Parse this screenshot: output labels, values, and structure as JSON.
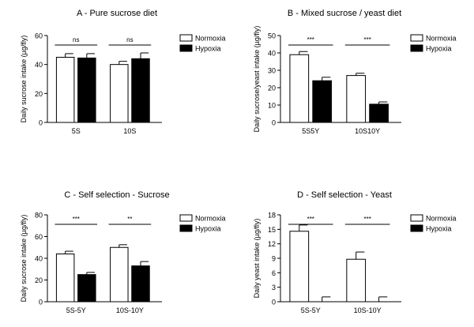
{
  "chart_data": [
    {
      "type": "bar",
      "title": "A - Pure sucrose diet",
      "xlabel": "",
      "ylabel": "Daily sucrose intake (µg/fly)",
      "ylim": [
        0,
        60
      ],
      "yticks": [
        "0",
        "20",
        "40",
        "60"
      ],
      "categories": [
        "5S",
        "10S"
      ],
      "series": [
        {
          "name": "Normoxia",
          "values": [
            45,
            40
          ],
          "errors": [
            2.5,
            2.2
          ],
          "color": "#ffffff"
        },
        {
          "name": "Hypoxia",
          "values": [
            44.5,
            44
          ],
          "errors": [
            3,
            4
          ],
          "color": "#000000"
        }
      ],
      "significance": [
        "ns",
        "ns"
      ],
      "legend_position": "top-right"
    },
    {
      "type": "bar",
      "title": "B - Mixed sucrose / yeast diet",
      "xlabel": "",
      "ylabel": "Daily sucrose/yeast intake (µg/fly)",
      "ylim": [
        0,
        50
      ],
      "yticks": [
        "0",
        "10",
        "20",
        "30",
        "40",
        "50"
      ],
      "categories": [
        "5S5Y",
        "10S10Y"
      ],
      "series": [
        {
          "name": "Normoxia",
          "values": [
            39,
            27
          ],
          "errors": [
            1.8,
            1.3
          ],
          "color": "#ffffff"
        },
        {
          "name": "Hypoxia",
          "values": [
            24,
            10.5
          ],
          "errors": [
            2,
            1.3
          ],
          "color": "#000000"
        }
      ],
      "significance": [
        "***",
        "***"
      ],
      "legend_position": "top-right"
    },
    {
      "type": "bar",
      "title": "C - Self selection - Sucrose",
      "xlabel": "",
      "ylabel": "Daily sucrose intake (µg/fly)",
      "ylim": [
        0,
        80
      ],
      "yticks": [
        "0",
        "20",
        "40",
        "60",
        "80"
      ],
      "categories": [
        "5S-5Y",
        "10S-10Y"
      ],
      "series": [
        {
          "name": "Normoxia",
          "values": [
            44,
            50
          ],
          "errors": [
            2.5,
            2.5
          ],
          "color": "#ffffff"
        },
        {
          "name": "Hypoxia",
          "values": [
            25,
            33
          ],
          "errors": [
            2,
            4
          ],
          "color": "#000000"
        }
      ],
      "significance": [
        "***",
        "**"
      ],
      "legend_position": "top-right"
    },
    {
      "type": "bar",
      "title": "D - Self selection - Yeast",
      "xlabel": "",
      "ylabel": "Daily yeast intake (µg/fly)",
      "ylim": [
        0,
        18
      ],
      "yticks": [
        "0",
        "3",
        "6",
        "9",
        "12",
        "15",
        "18"
      ],
      "categories": [
        "5S-5Y",
        "10S-10Y"
      ],
      "series": [
        {
          "name": "Normoxia",
          "values": [
            14.6,
            8.8
          ],
          "errors": [
            1.3,
            1.5
          ],
          "color": "#ffffff"
        },
        {
          "name": "Hypoxia",
          "values": [
            0,
            0
          ],
          "errors": [
            1,
            1
          ],
          "color": "#000000"
        }
      ],
      "significance": [
        "***",
        "***"
      ],
      "legend_position": "top-right"
    }
  ]
}
